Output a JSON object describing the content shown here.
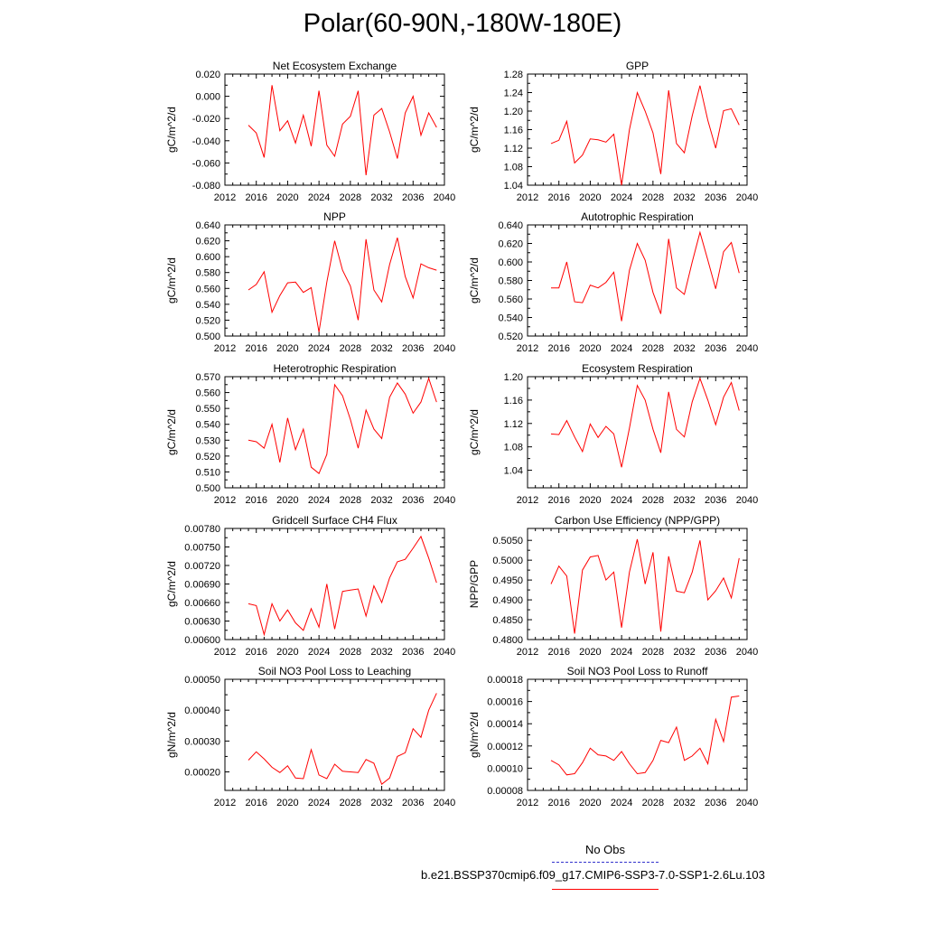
{
  "page": {
    "title": "Polar(60-90N,-180W-180E)"
  },
  "legend": {
    "obs_label": "No Obs",
    "run_label": "b.e21.BSSP370cmip6.f09_g17.CMIP6-SSP3-7.0-SSP1-2.6Lu.103",
    "obs_color": "#3333cc",
    "run_color": "#ff0000"
  },
  "chart_data": [
    {
      "type": "line",
      "title": "Net Ecosystem Exchange",
      "ylabel": "gC/m^2/d",
      "xlim": [
        2012,
        2040
      ],
      "x_ticks": [
        "2012",
        "2016",
        "2020",
        "2024",
        "2028",
        "2032",
        "2036",
        "2040"
      ],
      "ylim": [
        -0.08,
        0.02
      ],
      "y_ticks": [
        "-0.080",
        "-0.060",
        "-0.040",
        "-0.020",
        "0.000",
        "0.020"
      ],
      "series": [
        {
          "color": "#ff0000",
          "x": [
            2015,
            2016,
            2017,
            2018,
            2019,
            2020,
            2021,
            2022,
            2023,
            2024,
            2025,
            2026,
            2027,
            2028,
            2029,
            2030,
            2031,
            2032,
            2033,
            2034,
            2035,
            2036,
            2037,
            2038,
            2039
          ],
          "values": [
            -0.026,
            -0.033,
            -0.055,
            0.01,
            -0.031,
            -0.022,
            -0.042,
            -0.017,
            -0.045,
            0.005,
            -0.044,
            -0.054,
            -0.025,
            -0.018,
            0.005,
            -0.071,
            -0.017,
            -0.011,
            -0.032,
            -0.056,
            -0.015,
            0.0,
            -0.035,
            -0.015,
            -0.028
          ]
        }
      ]
    },
    {
      "type": "line",
      "title": "GPP",
      "ylabel": "gC/m^2/d",
      "xlim": [
        2012,
        2040
      ],
      "x_ticks": [
        "2012",
        "2016",
        "2020",
        "2024",
        "2028",
        "2032",
        "2036",
        "2040"
      ],
      "ylim": [
        1.04,
        1.28
      ],
      "y_ticks": [
        "1.04",
        "1.08",
        "1.12",
        "1.16",
        "1.20",
        "1.24",
        "1.28"
      ],
      "series": [
        {
          "color": "#ff0000",
          "x": [
            2015,
            2016,
            2017,
            2018,
            2019,
            2020,
            2021,
            2022,
            2023,
            2024,
            2025,
            2026,
            2027,
            2028,
            2029,
            2030,
            2031,
            2032,
            2033,
            2034,
            2035,
            2036,
            2037,
            2038,
            2039
          ],
          "values": [
            1.13,
            1.137,
            1.178,
            1.088,
            1.105,
            1.14,
            1.138,
            1.133,
            1.15,
            1.04,
            1.16,
            1.24,
            1.2,
            1.153,
            1.064,
            1.245,
            1.13,
            1.11,
            1.19,
            1.255,
            1.18,
            1.12,
            1.201,
            1.205,
            1.17
          ]
        }
      ]
    },
    {
      "type": "line",
      "title": "NPP",
      "ylabel": "gC/m^2/d",
      "xlim": [
        2012,
        2040
      ],
      "x_ticks": [
        "2012",
        "2016",
        "2020",
        "2024",
        "2028",
        "2032",
        "2036",
        "2040"
      ],
      "ylim": [
        0.5,
        0.64
      ],
      "y_ticks": [
        "0.500",
        "0.520",
        "0.540",
        "0.560",
        "0.580",
        "0.600",
        "0.620",
        "0.640"
      ],
      "series": [
        {
          "color": "#ff0000",
          "x": [
            2015,
            2016,
            2017,
            2018,
            2019,
            2020,
            2021,
            2022,
            2023,
            2024,
            2025,
            2026,
            2027,
            2028,
            2029,
            2030,
            2031,
            2032,
            2033,
            2034,
            2035,
            2036,
            2037,
            2038,
            2039
          ],
          "values": [
            0.558,
            0.565,
            0.581,
            0.53,
            0.551,
            0.567,
            0.568,
            0.555,
            0.561,
            0.505,
            0.568,
            0.62,
            0.583,
            0.563,
            0.52,
            0.622,
            0.558,
            0.543,
            0.59,
            0.624,
            0.575,
            0.548,
            0.591,
            0.586,
            0.583
          ]
        }
      ]
    },
    {
      "type": "line",
      "title": "Autotrophic Respiration",
      "ylabel": "gC/m^2/d",
      "xlim": [
        2012,
        2040
      ],
      "x_ticks": [
        "2012",
        "2016",
        "2020",
        "2024",
        "2028",
        "2032",
        "2036",
        "2040"
      ],
      "ylim": [
        0.52,
        0.64
      ],
      "y_ticks": [
        "0.520",
        "0.540",
        "0.560",
        "0.580",
        "0.600",
        "0.620",
        "0.640"
      ],
      "series": [
        {
          "color": "#ff0000",
          "x": [
            2015,
            2016,
            2017,
            2018,
            2019,
            2020,
            2021,
            2022,
            2023,
            2024,
            2025,
            2026,
            2027,
            2028,
            2029,
            2030,
            2031,
            2032,
            2033,
            2034,
            2035,
            2036,
            2037,
            2038,
            2039
          ],
          "values": [
            0.572,
            0.572,
            0.6,
            0.557,
            0.556,
            0.575,
            0.572,
            0.578,
            0.589,
            0.536,
            0.591,
            0.62,
            0.602,
            0.567,
            0.544,
            0.625,
            0.572,
            0.565,
            0.6,
            0.632,
            0.602,
            0.571,
            0.611,
            0.621,
            0.588
          ]
        }
      ]
    },
    {
      "type": "line",
      "title": "Heterotrophic Respiration",
      "ylabel": "gC/m^2/d",
      "xlim": [
        2012,
        2040
      ],
      "x_ticks": [
        "2012",
        "2016",
        "2020",
        "2024",
        "2028",
        "2032",
        "2036",
        "2040"
      ],
      "ylim": [
        0.5,
        0.57
      ],
      "y_ticks": [
        "0.500",
        "0.510",
        "0.520",
        "0.530",
        "0.540",
        "0.550",
        "0.560",
        "0.570"
      ],
      "series": [
        {
          "color": "#ff0000",
          "x": [
            2015,
            2016,
            2017,
            2018,
            2019,
            2020,
            2021,
            2022,
            2023,
            2024,
            2025,
            2026,
            2027,
            2028,
            2029,
            2030,
            2031,
            2032,
            2033,
            2034,
            2035,
            2036,
            2037,
            2038,
            2039
          ],
          "values": [
            0.53,
            0.529,
            0.525,
            0.54,
            0.516,
            0.544,
            0.524,
            0.537,
            0.513,
            0.509,
            0.521,
            0.565,
            0.558,
            0.543,
            0.525,
            0.549,
            0.537,
            0.531,
            0.557,
            0.566,
            0.559,
            0.547,
            0.554,
            0.569,
            0.554
          ]
        }
      ]
    },
    {
      "type": "line",
      "title": "Ecosystem Respiration",
      "ylabel": "gC/m^2/d",
      "xlim": [
        2012,
        2040
      ],
      "x_ticks": [
        "2012",
        "2016",
        "2020",
        "2024",
        "2028",
        "2032",
        "2036",
        "2040"
      ],
      "ylim": [
        1.01,
        1.2
      ],
      "y_ticks": [
        "1.04",
        "1.08",
        "1.12",
        "1.16",
        "1.20"
      ],
      "series": [
        {
          "color": "#ff0000",
          "x": [
            2015,
            2016,
            2017,
            2018,
            2019,
            2020,
            2021,
            2022,
            2023,
            2024,
            2025,
            2026,
            2027,
            2028,
            2029,
            2030,
            2031,
            2032,
            2033,
            2034,
            2035,
            2036,
            2037,
            2038,
            2039
          ],
          "values": [
            1.102,
            1.101,
            1.125,
            1.097,
            1.072,
            1.119,
            1.096,
            1.115,
            1.102,
            1.045,
            1.112,
            1.185,
            1.16,
            1.11,
            1.07,
            1.174,
            1.11,
            1.097,
            1.157,
            1.197,
            1.16,
            1.118,
            1.165,
            1.19,
            1.142
          ]
        }
      ]
    },
    {
      "type": "line",
      "title": "Gridcell Surface CH4 Flux",
      "ylabel": "gC/m^2/d",
      "xlim": [
        2012,
        2040
      ],
      "x_ticks": [
        "2012",
        "2016",
        "2020",
        "2024",
        "2028",
        "2032",
        "2036",
        "2040"
      ],
      "ylim": [
        0.006,
        0.0078
      ],
      "y_ticks": [
        "0.00600",
        "0.00630",
        "0.00660",
        "0.00690",
        "0.00720",
        "0.00750",
        "0.00780"
      ],
      "series": [
        {
          "color": "#ff0000",
          "x": [
            2015,
            2016,
            2017,
            2018,
            2019,
            2020,
            2021,
            2022,
            2023,
            2024,
            2025,
            2026,
            2027,
            2028,
            2029,
            2030,
            2031,
            2032,
            2033,
            2034,
            2035,
            2036,
            2037,
            2038,
            2039
          ],
          "values": [
            0.00658,
            0.00655,
            0.00608,
            0.00658,
            0.0063,
            0.00648,
            0.00627,
            0.00615,
            0.0065,
            0.0062,
            0.0069,
            0.00617,
            0.00678,
            0.0068,
            0.00682,
            0.00638,
            0.00687,
            0.0066,
            0.007,
            0.00726,
            0.0073,
            0.00748,
            0.00767,
            0.00732,
            0.00692
          ]
        }
      ]
    },
    {
      "type": "line",
      "title": "Carbon Use Efficiency (NPP/GPP)",
      "ylabel": "NPP/GPP",
      "xlim": [
        2012,
        2040
      ],
      "x_ticks": [
        "2012",
        "2016",
        "2020",
        "2024",
        "2028",
        "2032",
        "2036",
        "2040"
      ],
      "ylim": [
        0.48,
        0.508
      ],
      "y_ticks": [
        "0.4800",
        "0.4850",
        "0.4900",
        "0.4950",
        "0.5000",
        "0.5050"
      ],
      "series": [
        {
          "color": "#ff0000",
          "x": [
            2015,
            2016,
            2017,
            2018,
            2019,
            2020,
            2021,
            2022,
            2023,
            2024,
            2025,
            2026,
            2027,
            2028,
            2029,
            2030,
            2031,
            2032,
            2033,
            2034,
            2035,
            2036,
            2037,
            2038,
            2039
          ],
          "values": [
            0.494,
            0.4985,
            0.496,
            0.4815,
            0.4975,
            0.5008,
            0.5012,
            0.495,
            0.497,
            0.483,
            0.497,
            0.5053,
            0.494,
            0.502,
            0.482,
            0.501,
            0.4922,
            0.4918,
            0.497,
            0.505,
            0.49,
            0.4923,
            0.4955,
            0.4905,
            0.5005
          ]
        }
      ]
    },
    {
      "type": "line",
      "title": "Soil NO3 Pool Loss to Leaching",
      "ylabel": "gN/m^2/d",
      "xlim": [
        2012,
        2040
      ],
      "x_ticks": [
        "2012",
        "2016",
        "2020",
        "2024",
        "2028",
        "2032",
        "2036",
        "2040"
      ],
      "ylim": [
        0.00014,
        0.0005
      ],
      "y_ticks": [
        "0.00020",
        "0.00030",
        "0.00040",
        "0.00050"
      ],
      "series": [
        {
          "color": "#ff0000",
          "x": [
            2015,
            2016,
            2017,
            2018,
            2019,
            2020,
            2021,
            2022,
            2023,
            2024,
            2025,
            2026,
            2027,
            2028,
            2029,
            2030,
            2031,
            2032,
            2033,
            2034,
            2035,
            2036,
            2037,
            2038,
            2039
          ],
          "values": [
            0.000238,
            0.000265,
            0.000242,
            0.000215,
            0.000198,
            0.00022,
            0.00018,
            0.000178,
            0.000272,
            0.00019,
            0.000178,
            0.000225,
            0.000202,
            0.0002,
            0.000198,
            0.00024,
            0.000228,
            0.00016,
            0.00018,
            0.00025,
            0.000262,
            0.00034,
            0.000312,
            0.0004,
            0.000455
          ]
        }
      ]
    },
    {
      "type": "line",
      "title": "Soil NO3 Pool Loss to Runoff",
      "ylabel": "gN/m^2/d",
      "xlim": [
        2012,
        2040
      ],
      "x_ticks": [
        "2012",
        "2016",
        "2020",
        "2024",
        "2028",
        "2032",
        "2036",
        "2040"
      ],
      "ylim": [
        8e-05,
        0.00018
      ],
      "y_ticks": [
        "0.00008",
        "0.00010",
        "0.00012",
        "0.00014",
        "0.00016",
        "0.00018"
      ],
      "series": [
        {
          "color": "#ff0000",
          "x": [
            2015,
            2016,
            2017,
            2018,
            2019,
            2020,
            2021,
            2022,
            2023,
            2024,
            2025,
            2026,
            2027,
            2028,
            2029,
            2030,
            2031,
            2032,
            2033,
            2034,
            2035,
            2036,
            2037,
            2038,
            2039
          ],
          "values": [
            0.000107,
            0.000103,
            9.4e-05,
            9.5e-05,
            0.000105,
            0.000118,
            0.000112,
            0.000111,
            0.000107,
            0.000115,
            0.000104,
            9.5e-05,
            9.6e-05,
            0.000107,
            0.000125,
            0.000123,
            0.000137,
            0.000107,
            0.000111,
            0.000118,
            0.000104,
            0.000144,
            0.000124,
            0.000164,
            0.000165
          ]
        }
      ]
    }
  ]
}
